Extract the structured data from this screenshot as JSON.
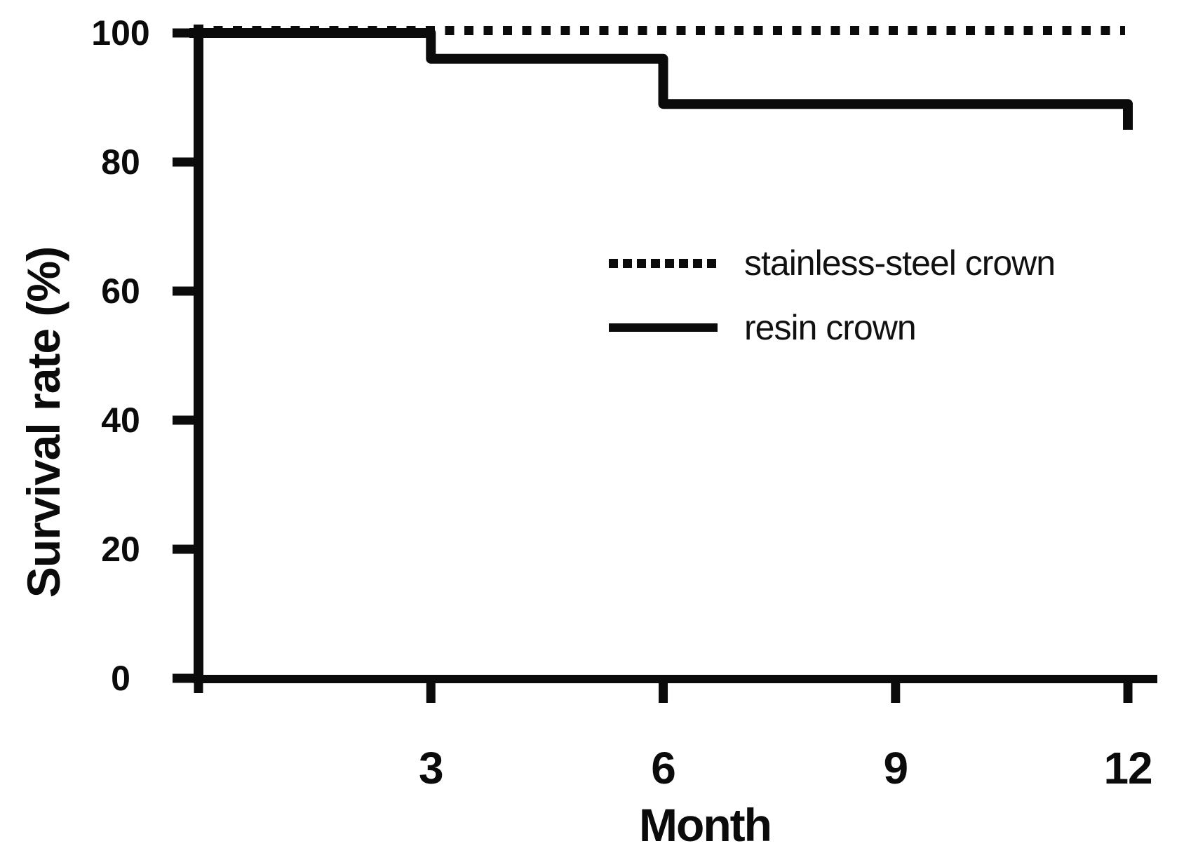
{
  "page": {
    "background": "#ffffff",
    "ink": "#0b0b0b"
  },
  "chart_data": {
    "type": "line",
    "subtype": "kaplan-meier-step-curve",
    "title": "",
    "xlabel": "Month",
    "ylabel": "Survival rate (%)",
    "xlim": [
      0,
      12
    ],
    "ylim": [
      0,
      100
    ],
    "x_ticks": [
      3,
      6,
      9,
      12
    ],
    "y_ticks": [
      0,
      20,
      40,
      60,
      80,
      100
    ],
    "grid": false,
    "legend_position": "inside-middle-right",
    "series": [
      {
        "name": "stainless-steel crown",
        "line_style": "dotted",
        "color": "#0b0b0b",
        "step_points": [
          [
            0,
            100
          ],
          [
            12,
            100
          ]
        ],
        "survival_pct_at_months": {
          "0": 100,
          "3": 100,
          "6": 100,
          "9": 100,
          "12": 100
        }
      },
      {
        "name": "resin crown",
        "line_style": "solid",
        "color": "#0b0b0b",
        "step_points": [
          [
            0,
            100
          ],
          [
            3,
            100
          ],
          [
            3,
            96
          ],
          [
            6,
            96
          ],
          [
            6,
            89
          ],
          [
            12,
            89
          ],
          [
            12,
            85
          ]
        ],
        "survival_pct_at_months": {
          "0": 100,
          "3": 96,
          "6": 89,
          "9": 89,
          "12": 85
        }
      }
    ]
  }
}
